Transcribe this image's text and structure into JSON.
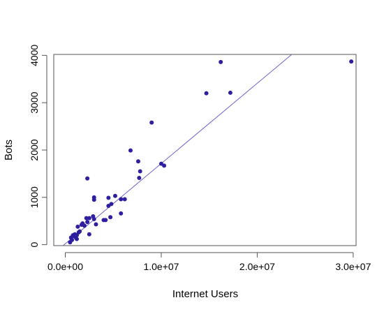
{
  "chart_data": {
    "type": "scatter",
    "title": "",
    "xlabel": "Internet Users",
    "ylabel": "Bots",
    "xlim": [
      -1200000,
      30300000
    ],
    "ylim": [
      -20,
      4020
    ],
    "x_ticks": [
      {
        "value": 0,
        "label": "0.0e+00"
      },
      {
        "value": 10000000,
        "label": "1.0e+07"
      },
      {
        "value": 20000000,
        "label": "2.0e+07"
      },
      {
        "value": 30000000,
        "label": "3.0e+07"
      }
    ],
    "y_ticks": [
      {
        "value": 0,
        "label": "0"
      },
      {
        "value": 1000,
        "label": "1000"
      },
      {
        "value": 2000,
        "label": "2000"
      },
      {
        "value": 3000,
        "label": "3000"
      },
      {
        "value": 4000,
        "label": "4000"
      }
    ],
    "grid": false,
    "point_color": "#2e1f9e",
    "line_color": "#6f63c7",
    "regression_line": {
      "intercept": 20,
      "slope": 0.0001695
    },
    "x": [
      500000,
      600000,
      700000,
      800000,
      900000,
      1000000,
      1100000,
      1200000,
      1300000,
      1400000,
      1500000,
      1800000,
      2000000,
      2200000,
      2300000,
      2500000,
      2500000,
      2900000,
      3000000,
      3000000,
      3000000,
      3200000,
      4000000,
      4200000,
      4500000,
      4500000,
      4700000,
      4800000,
      5200000,
      5800000,
      5800000,
      6200000,
      6800000,
      7600000,
      7700000,
      7800000,
      9000000,
      10000000,
      10300000,
      14700000,
      16200000,
      17200000,
      29800000,
      2300000,
      1200000,
      1700000
    ],
    "y": [
      50,
      150,
      100,
      200,
      180,
      220,
      150,
      120,
      380,
      260,
      280,
      450,
      400,
      560,
      1400,
      220,
      560,
      600,
      540,
      950,
      1000,
      430,
      520,
      520,
      990,
      820,
      580,
      860,
      1030,
      960,
      660,
      960,
      1990,
      1760,
      1410,
      1550,
      2580,
      1710,
      1670,
      3200,
      3860,
      3210,
      3870,
      480,
      200,
      420
    ]
  }
}
